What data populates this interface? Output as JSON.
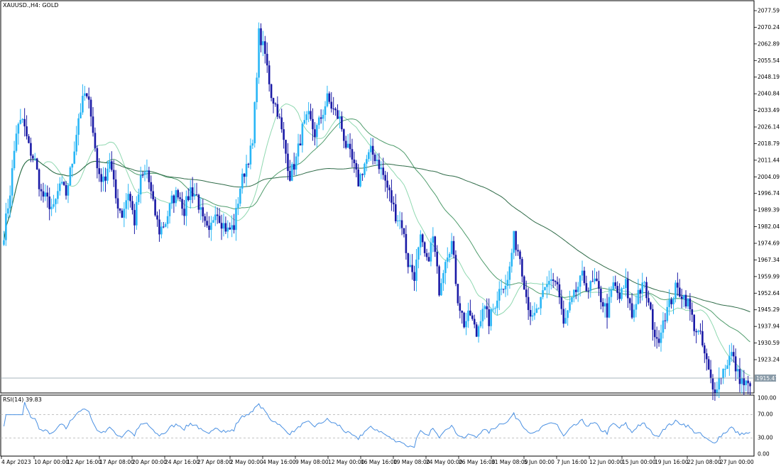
{
  "main_label": "XAUUSD.,H4:  GOLD",
  "rsi_label": "RSI(14) 39.83",
  "current_price": "1915.47",
  "price_ticks": [
    "2077.59",
    "2070.24",
    "2062.89",
    "2055.54",
    "2048.19",
    "2040.84",
    "2033.49",
    "2026.14",
    "2018.79",
    "2011.44",
    "2004.09",
    "1996.74",
    "1989.39",
    "1982.04",
    "1974.69",
    "1967.34",
    "1959.99",
    "1952.64",
    "1945.29",
    "1937.94",
    "1930.59",
    "1923.24"
  ],
  "rsi_ticks": [
    "100.00",
    "70.00",
    "30.00",
    "0.00"
  ],
  "time_ticks": [
    "4 Apr 2023",
    "10 Apr 00:00",
    "12 Apr 16:00",
    "17 Apr 08:00",
    "20 Apr 00:00",
    "24 Apr 16:00",
    "27 Apr 08:00",
    "2 May 00:00",
    "4 May 16:00",
    "9 May 08:00",
    "12 May 00:00",
    "16 May 16:00",
    "19 May 08:00",
    "24 May 00:00",
    "26 May 16:00",
    "31 May 08:00",
    "5 Jun 00:00",
    "7 Jun 16:00",
    "12 Jun 00:00",
    "15 Jun 00:00",
    "19 Jun 16:00",
    "22 Jun 08:00",
    "27 Jun 00:00"
  ],
  "colors": {
    "bull": "#29b6f6",
    "bear": "#1a1aa6",
    "ma_fast": "#8fd8b0",
    "ma_mid": "#4f9c6c",
    "ma_slow": "#2f6b48",
    "rsi": "#4a90e2",
    "current_price_bg": "#8a9ba8"
  },
  "chart_data": [
    {
      "type": "candlestick",
      "title": "XAUUSD.,H4:  GOLD",
      "ylim": [
        1912.4,
        2081.0
      ],
      "close_series_sampled": [
        1981,
        1999,
        2025,
        2030,
        2018,
        2012,
        1998,
        1995,
        1991,
        2002,
        1998,
        2012,
        2031,
        2041,
        2034,
        2009,
        2003,
        2013,
        1996,
        1989,
        1999,
        1986,
        2004,
        2008,
        1993,
        1982,
        1986,
        1995,
        1999,
        1991,
        2000,
        1997,
        1986,
        1980,
        1992,
        1986,
        1982,
        1984,
        2001,
        2011,
        2019,
        2067,
        2058,
        2041,
        2034,
        2020,
        2006,
        2013,
        2026,
        2031,
        2024,
        2031,
        2039,
        2034,
        2030,
        2019,
        2012,
        2003,
        2011,
        2016,
        2013,
        2006,
        1998,
        1989,
        1985,
        1968,
        1963,
        1978,
        1968,
        1979,
        1957,
        1971,
        1977,
        1953,
        1942,
        1946,
        1937,
        1950,
        1943,
        1951,
        1959,
        1960,
        1979,
        1971,
        1954,
        1943,
        1949,
        1956,
        1962,
        1959,
        1941,
        1949,
        1956,
        1962,
        1957,
        1960,
        1953,
        1947,
        1959,
        1953,
        1959,
        1945,
        1956,
        1958,
        1946,
        1933,
        1944,
        1950,
        1957,
        1955,
        1951,
        1941,
        1936,
        1925,
        1913,
        1918,
        1924,
        1929,
        1920,
        1916,
        1915
      ]
    },
    {
      "type": "line",
      "title": "RSI(14) 39.83",
      "ylim": [
        0,
        100
      ],
      "levels": [
        70,
        30
      ],
      "last_value": 39.83
    }
  ]
}
